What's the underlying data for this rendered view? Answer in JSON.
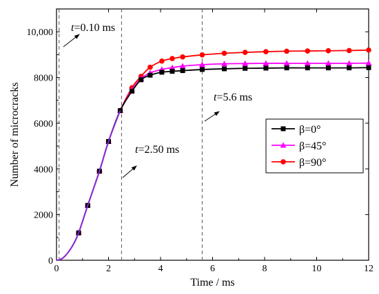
{
  "chart_data": {
    "type": "line",
    "xlabel": "Time / ms",
    "ylabel": "Number of microcracks",
    "xlim": [
      0,
      12
    ],
    "ylim": [
      0,
      11000
    ],
    "x_ticks": [
      0,
      2,
      4,
      6,
      8,
      10,
      12
    ],
    "y_ticks": [
      0,
      2000,
      4000,
      6000,
      8000,
      10000
    ],
    "y_tick_labels": [
      "0",
      "2000",
      "4000",
      "6000",
      "8000",
      "10,000"
    ],
    "grid": false,
    "legend_position": "right",
    "series": [
      {
        "name": "β=0°",
        "color": "#000000",
        "marker": "square",
        "x": [
          0,
          0.1,
          0.3,
          0.6,
          0.85,
          1.2,
          1.65,
          2.0,
          2.45,
          2.9,
          3.25,
          3.6,
          4.05,
          4.45,
          4.85,
          5.6,
          6.45,
          7.25,
          8.05,
          8.85,
          9.65,
          10.45,
          11.25,
          12.0
        ],
        "y": [
          0,
          20,
          150,
          600,
          1200,
          2400,
          3900,
          5200,
          6550,
          7400,
          7900,
          8100,
          8230,
          8270,
          8300,
          8350,
          8380,
          8400,
          8410,
          8420,
          8420,
          8420,
          8420,
          8430
        ]
      },
      {
        "name": "β=45°",
        "color": "#ff00ff",
        "marker": "triangle",
        "x": [
          0,
          0.1,
          0.3,
          0.6,
          0.85,
          1.2,
          1.65,
          2.0,
          2.45,
          2.9,
          3.25,
          3.6,
          4.05,
          4.45,
          4.85,
          5.6,
          6.45,
          7.25,
          8.05,
          8.85,
          9.65,
          10.45,
          11.25,
          12.0
        ],
        "y": [
          0,
          20,
          150,
          600,
          1200,
          2400,
          3900,
          5200,
          6550,
          7450,
          7950,
          8200,
          8350,
          8430,
          8500,
          8560,
          8600,
          8610,
          8620,
          8620,
          8620,
          8620,
          8620,
          8630
        ]
      },
      {
        "name": "β=90°",
        "color": "#ff0000",
        "marker": "circle",
        "x": [
          0,
          0.1,
          0.3,
          0.6,
          0.85,
          1.2,
          1.65,
          2.0,
          2.45,
          2.9,
          3.25,
          3.6,
          4.05,
          4.45,
          4.85,
          5.6,
          6.45,
          7.25,
          8.05,
          8.85,
          9.65,
          10.45,
          11.25,
          12.0
        ],
        "y": [
          0,
          20,
          150,
          600,
          1200,
          2400,
          3900,
          5200,
          6550,
          7550,
          8050,
          8450,
          8720,
          8830,
          8900,
          8990,
          9060,
          9100,
          9130,
          9150,
          9160,
          9170,
          9180,
          9200
        ]
      }
    ],
    "annotations": [
      {
        "label": "t=0.10 ms",
        "parts": [
          "t",
          "=0.10 ms"
        ],
        "x": 0.1
      },
      {
        "label": "t=2.50 ms",
        "parts": [
          "t",
          "=2.50 ms"
        ],
        "x": 2.5
      },
      {
        "label": "t=5.6 ms",
        "parts": [
          "t",
          "=5.6 ms"
        ],
        "x": 5.6
      }
    ]
  }
}
